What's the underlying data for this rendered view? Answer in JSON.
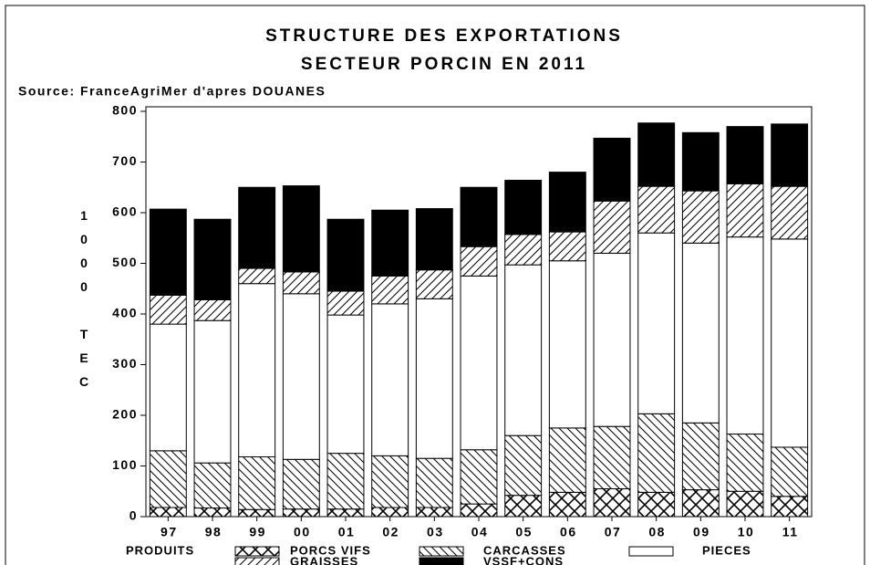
{
  "chart_data": {
    "type": "stacked_bar",
    "title": "STRUCTURE DES EXPORTATIONS",
    "subtitle": "SECTEUR PORCIN EN 2011",
    "source": "Source: FranceAgriMer d'apres DOUANES",
    "y_label": "1000 TEC",
    "legend_title": "PRODUITS",
    "categories": [
      "97",
      "98",
      "99",
      "00",
      "01",
      "02",
      "03",
      "04",
      "05",
      "06",
      "07",
      "08",
      "09",
      "10",
      "11"
    ],
    "ylim": [
      0,
      800
    ],
    "yticks": [
      0,
      100,
      200,
      300,
      400,
      500,
      600,
      700,
      800
    ],
    "series": [
      {
        "name": "PORCS VIFS",
        "color": "#000000",
        "pattern": "crosshatch",
        "values": [
          18,
          17,
          14,
          15,
          15,
          18,
          18,
          25,
          42,
          48,
          55,
          48,
          53,
          50,
          40
        ]
      },
      {
        "name": "CARCASSES",
        "color": "#000000",
        "pattern": "backslash",
        "values": [
          112,
          89,
          104,
          98,
          110,
          102,
          97,
          107,
          118,
          127,
          123,
          155,
          132,
          113,
          97
        ]
      },
      {
        "name": "PIECES",
        "color": "#ffffff",
        "pattern": "none",
        "values": [
          250,
          281,
          342,
          327,
          273,
          300,
          315,
          343,
          337,
          330,
          342,
          357,
          355,
          389,
          411
        ]
      },
      {
        "name": "GRAISSES",
        "color": "#000000",
        "pattern": "slash",
        "values": [
          57,
          41,
          30,
          43,
          47,
          55,
          57,
          58,
          60,
          57,
          103,
          92,
          103,
          105,
          104
        ]
      },
      {
        "name": "VSSF+CONS",
        "color": "#000000",
        "pattern": "solid",
        "values": [
          170,
          159,
          160,
          170,
          142,
          130,
          121,
          117,
          107,
          118,
          124,
          125,
          115,
          113,
          123
        ]
      }
    ]
  }
}
